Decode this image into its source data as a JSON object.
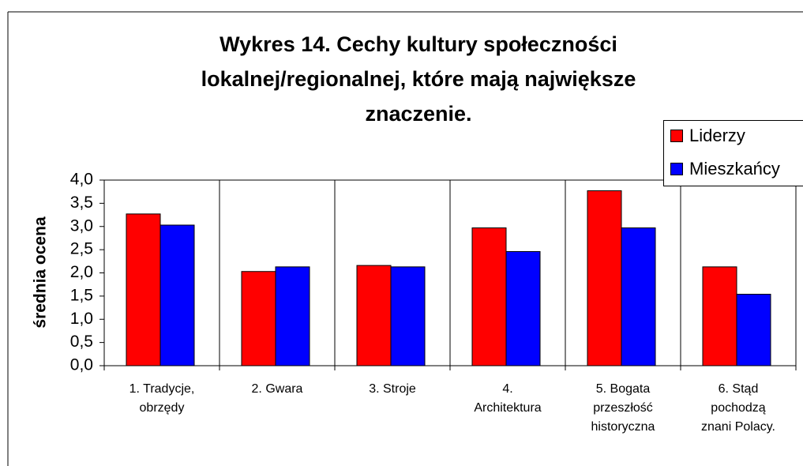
{
  "chart_data": {
    "type": "bar",
    "title": "Wykres 14. Cechy kultury społeczności\nlokalnej/regionalnej, które mają największe\nznaczenie.",
    "y_label": "średnia ocena",
    "categories": [
      "1. Tradycje,\nobrzędy",
      "2. Gwara",
      "3. Stroje",
      "4.\nArchitektura",
      "5. Bogata\nprzeszłość\nhistoryczna",
      "6. Stąd\npochodzą\nznani Polacy."
    ],
    "series": [
      {
        "name": "Liderzy",
        "color": "#ff0000",
        "values": [
          3.27,
          2.03,
          2.16,
          2.97,
          3.77,
          2.13
        ]
      },
      {
        "name": "Mieszkańcy",
        "color": "#0000ff",
        "values": [
          3.03,
          2.13,
          2.13,
          2.46,
          2.97,
          1.54
        ]
      }
    ],
    "ylim": [
      0,
      4
    ],
    "yticks": [
      {
        "value": 0,
        "label": "0,0"
      },
      {
        "value": 0.5,
        "label": "0,5"
      },
      {
        "value": 1,
        "label": "1,0"
      },
      {
        "value": 1.5,
        "label": "1,5"
      },
      {
        "value": 2,
        "label": "2,0"
      },
      {
        "value": 2.5,
        "label": "2,5"
      },
      {
        "value": 3,
        "label": "3,0"
      },
      {
        "value": 3.5,
        "label": "3,5"
      },
      {
        "value": 4,
        "label": "4,0"
      }
    ],
    "legend": "right"
  }
}
